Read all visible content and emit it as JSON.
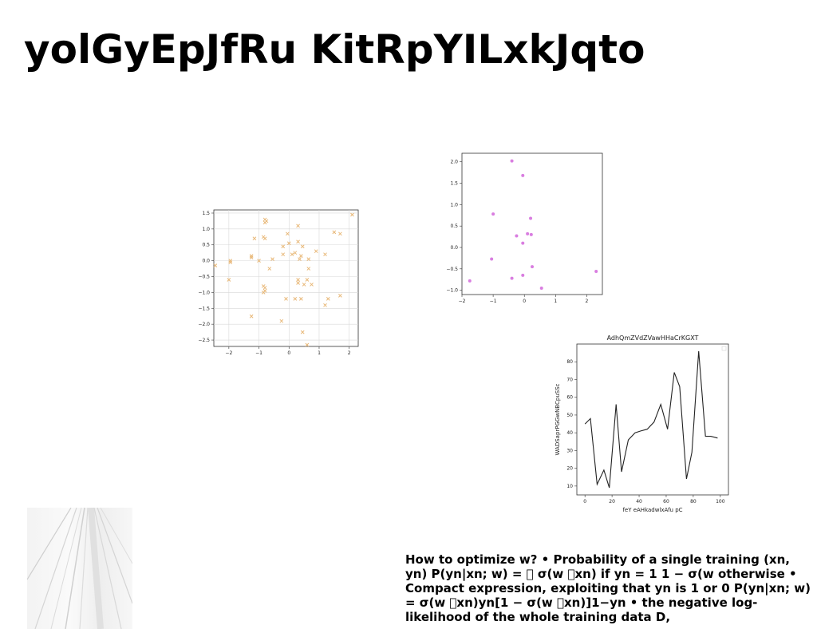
{
  "page": {
    "title": "yolGyEpJfRu KitRpYILxkJqto",
    "body_text": "How to optimize w? • Probability of a single training (xn, yn) P(yn|xn; w) = \u0000 σ(w \u0000xn) if yn = 1 1 − σ(w otherwise • Compact expression, exploiting that yn is 1 or 0 P(yn|xn; w) = σ(w \u0000xn)yn[1 − σ(w \u0000xn)]1−yn • the negative log-likelihood of the whole training data D,"
  },
  "colors": {
    "scatter1": "#e8b878",
    "scatter2": "#d97ee0",
    "line": "#222222",
    "grid": "#d8d8d8"
  },
  "chart_data": [
    {
      "type": "scatter",
      "marker": "x",
      "title": "",
      "xlabel": "",
      "ylabel": "",
      "xlim": [
        -2.5,
        2.3
      ],
      "ylim": [
        -2.7,
        1.6
      ],
      "xticks": [
        -2,
        -1,
        0,
        1,
        2
      ],
      "xtick_labels": [
        "−2",
        "−1",
        "0",
        "1",
        "2"
      ],
      "yticks": [
        1.5,
        1.0,
        0.5,
        0.0,
        -0.5,
        -1.0,
        -1.5,
        -2.0,
        -2.5
      ],
      "ytick_labels": [
        "1.5",
        "1.0",
        "0.5",
        "0.0",
        "−0.5",
        "−1.0",
        "−1.5",
        "−2.0",
        "−2.5"
      ],
      "grid": true,
      "points": [
        [
          -2.45,
          -0.15
        ],
        [
          -2.0,
          -0.6
        ],
        [
          -1.95,
          0.0
        ],
        [
          -1.95,
          -0.05
        ],
        [
          -1.25,
          0.1
        ],
        [
          -1.25,
          0.15
        ],
        [
          -1.15,
          0.7
        ],
        [
          -1.0,
          0.0
        ],
        [
          -1.25,
          -1.75
        ],
        [
          -0.85,
          0.75
        ],
        [
          -0.8,
          1.3
        ],
        [
          -0.75,
          1.25
        ],
        [
          -0.8,
          1.2
        ],
        [
          -0.8,
          0.7
        ],
        [
          -0.85,
          -0.8
        ],
        [
          -0.8,
          -0.85
        ],
        [
          -0.8,
          -0.95
        ],
        [
          -0.85,
          -1.0
        ],
        [
          -0.65,
          -0.25
        ],
        [
          -0.55,
          0.05
        ],
        [
          -0.25,
          -1.9
        ],
        [
          -0.2,
          0.2
        ],
        [
          -0.2,
          0.45
        ],
        [
          -0.05,
          0.85
        ],
        [
          0.0,
          0.55
        ],
        [
          -0.1,
          -1.2
        ],
        [
          0.1,
          0.2
        ],
        [
          0.2,
          0.25
        ],
        [
          0.2,
          -1.2
        ],
        [
          0.3,
          0.6
        ],
        [
          0.3,
          -0.7
        ],
        [
          0.3,
          -0.6
        ],
        [
          0.3,
          1.1
        ],
        [
          0.35,
          0.05
        ],
        [
          0.4,
          0.15
        ],
        [
          0.45,
          0.45
        ],
        [
          0.4,
          -1.2
        ],
        [
          0.45,
          -2.25
        ],
        [
          0.5,
          -0.75
        ],
        [
          0.6,
          -0.6
        ],
        [
          0.6,
          -2.65
        ],
        [
          0.65,
          -0.25
        ],
        [
          0.65,
          0.05
        ],
        [
          0.75,
          -0.75
        ],
        [
          0.9,
          0.3
        ],
        [
          1.2,
          0.2
        ],
        [
          1.2,
          -1.4
        ],
        [
          1.3,
          -1.2
        ],
        [
          1.5,
          0.9
        ],
        [
          1.7,
          0.85
        ],
        [
          1.7,
          -1.1
        ],
        [
          2.1,
          1.45
        ]
      ]
    },
    {
      "type": "scatter",
      "marker": "o",
      "title": "",
      "xlabel": "",
      "ylabel": "",
      "xlim": [
        -2.0,
        2.5
      ],
      "ylim": [
        -1.1,
        2.2
      ],
      "xticks": [
        -2,
        -1,
        0,
        1,
        2
      ],
      "xtick_labels": [
        "−2",
        "−1",
        "0",
        "1",
        "2"
      ],
      "yticks": [
        2.0,
        1.5,
        1.0,
        0.5,
        0.0,
        -0.5,
        -1.0
      ],
      "ytick_labels": [
        "2.0",
        "1.5",
        "1.0",
        "0.5",
        "0.0",
        "−0.5",
        "−1.0"
      ],
      "grid": false,
      "points": [
        [
          -1.75,
          -0.78
        ],
        [
          -1.0,
          0.78
        ],
        [
          -1.05,
          -0.27
        ],
        [
          -0.4,
          2.02
        ],
        [
          -0.4,
          -0.72
        ],
        [
          -0.25,
          0.27
        ],
        [
          -0.05,
          0.1
        ],
        [
          -0.05,
          1.68
        ],
        [
          -0.05,
          -0.65
        ],
        [
          0.1,
          0.32
        ],
        [
          0.2,
          0.68
        ],
        [
          0.22,
          0.3
        ],
        [
          0.25,
          -0.45
        ],
        [
          0.55,
          -0.95
        ],
        [
          2.3,
          -0.56
        ]
      ]
    },
    {
      "type": "line",
      "title": "AdhQmZVdZVawHHaCrKGXT",
      "xlabel": "feY eAHkadwlxAfu pC",
      "ylabel": "WADSaprPGGwNBCpuSSc",
      "xlim": [
        -6,
        106
      ],
      "ylim": [
        5,
        90
      ],
      "xticks": [
        0,
        20,
        40,
        60,
        80,
        100
      ],
      "xtick_labels": [
        "0",
        "20",
        "40",
        "60",
        "80",
        "100"
      ],
      "yticks": [
        80,
        70,
        60,
        50,
        40,
        30,
        20,
        10
      ],
      "ytick_labels": [
        "80",
        "70",
        "60",
        "50",
        "40",
        "30",
        "20",
        "10"
      ],
      "grid": false,
      "x": [
        0,
        4,
        9,
        14,
        18,
        23,
        27,
        32,
        37,
        41,
        46,
        51,
        56,
        61,
        66,
        70,
        75,
        79,
        84,
        89,
        93,
        98
      ],
      "y": [
        45,
        48,
        11,
        19,
        9,
        56,
        18,
        36,
        40,
        41,
        42,
        46,
        56,
        42,
        74,
        66,
        14,
        29,
        86,
        38,
        38,
        37
      ]
    }
  ]
}
